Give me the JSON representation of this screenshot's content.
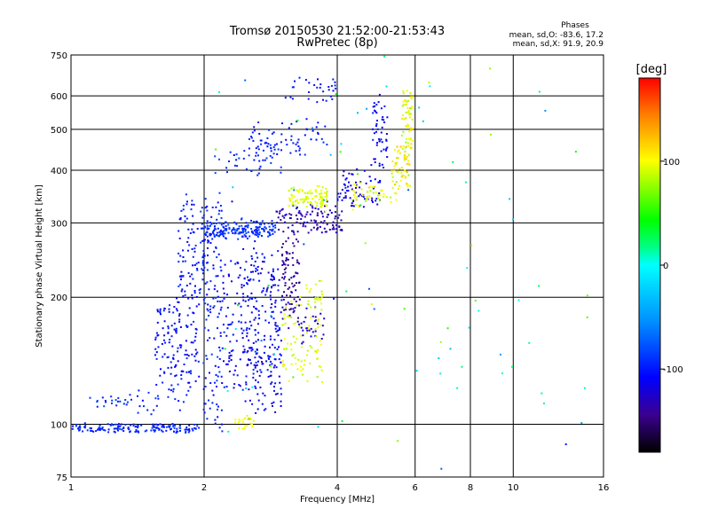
{
  "chart_data": {
    "type": "scatter",
    "title": "Tromsø 20150530 21:52:00-21:53:43",
    "subtitle": "RwPretec (8p)",
    "xlabel": "Frequency [MHz]",
    "ylabel": "Stationary phase Virtual Height [km]",
    "xscale": "log",
    "yscale": "log",
    "xlim": [
      1,
      16
    ],
    "ylim": [
      75,
      750
    ],
    "x_ticks": [
      1,
      2,
      4,
      6,
      8,
      10,
      16
    ],
    "x_tick_labels": [
      "1",
      "2",
      "4",
      "6",
      "8",
      "10",
      "16"
    ],
    "x_gridlines": [
      2,
      4,
      6,
      8,
      10
    ],
    "y_ticks": [
      75,
      100,
      200,
      300,
      400,
      500,
      600,
      750
    ],
    "y_tick_labels": [
      "75",
      "100",
      "200",
      "300",
      "400",
      "500",
      "600",
      "750"
    ],
    "y_gridlines": [
      100,
      200,
      300,
      400,
      500,
      600
    ],
    "grid": true,
    "phase_box": {
      "title": "Phases",
      "line_o": "mean, sd,O: -83.6, 17.2",
      "line_x": "mean, sd,X:  91.9, 20.9"
    },
    "colorbar": {
      "label": "[deg]",
      "range": [
        -180,
        180
      ],
      "ticks": [
        100,
        0,
        -100
      ],
      "tick_labels": [
        "100",
        "0",
        "-100"
      ]
    },
    "traces": [
      {
        "x0": 1.0,
        "x1": 1.95,
        "h0": 96,
        "h1": 100,
        "n": 150,
        "jitter": 0.008,
        "phase": -95,
        "psd": 8
      },
      {
        "x0": 1.1,
        "x1": 1.4,
        "h0": 110,
        "h1": 117,
        "n": 22,
        "jitter": 0.02,
        "phase": -90,
        "psd": 10
      },
      {
        "x0": 1.4,
        "x1": 1.85,
        "h0": 108,
        "h1": 125,
        "n": 30,
        "jitter": 0.04,
        "phase": -95,
        "psd": 10
      },
      {
        "x0": 1.55,
        "x1": 1.95,
        "h0": 130,
        "h1": 200,
        "n": 130,
        "jitter": 0.06,
        "phase": -105,
        "psd": 15
      },
      {
        "x0": 1.75,
        "x1": 2.05,
        "h0": 200,
        "h1": 340,
        "n": 110,
        "jitter": 0.05,
        "phase": -100,
        "psd": 15
      },
      {
        "x0": 1.98,
        "x1": 2.2,
        "h0": 100,
        "h1": 340,
        "n": 120,
        "jitter": 0.06,
        "phase": -100,
        "psd": 18
      },
      {
        "x0": 2.0,
        "x1": 2.9,
        "h0": 280,
        "h1": 300,
        "n": 180,
        "jitter": 0.025,
        "phase": -90,
        "psd": 12
      },
      {
        "x0": 2.2,
        "x1": 2.9,
        "h0": 110,
        "h1": 250,
        "n": 200,
        "jitter": 0.07,
        "phase": -110,
        "psd": 18
      },
      {
        "x0": 2.45,
        "x1": 2.65,
        "h0": 135,
        "h1": 300,
        "n": 70,
        "jitter": 0.06,
        "phase": -105,
        "psd": 15
      },
      {
        "x0": 2.8,
        "x1": 3.0,
        "h0": 110,
        "h1": 250,
        "n": 60,
        "jitter": 0.06,
        "phase": -110,
        "psd": 15
      },
      {
        "x0": 2.9,
        "x1": 4.1,
        "h0": 285,
        "h1": 330,
        "n": 110,
        "jitter": 0.02,
        "phase": -130,
        "psd": 12
      },
      {
        "x0": 3.0,
        "x1": 3.3,
        "h0": 175,
        "h1": 280,
        "n": 90,
        "jitter": 0.06,
        "phase": -140,
        "psd": 12
      },
      {
        "x0": 3.3,
        "x1": 3.75,
        "h0": 160,
        "h1": 190,
        "n": 30,
        "jitter": 0.04,
        "phase": -120,
        "psd": 12
      },
      {
        "x0": 3.0,
        "x1": 3.7,
        "h0": 130,
        "h1": 190,
        "n": 80,
        "jitter": 0.06,
        "phase": 95,
        "psd": 15
      },
      {
        "x0": 3.1,
        "x1": 3.8,
        "h0": 330,
        "h1": 360,
        "n": 100,
        "jitter": 0.025,
        "phase": 95,
        "psd": 12
      },
      {
        "x0": 3.4,
        "x1": 3.7,
        "h0": 190,
        "h1": 220,
        "n": 25,
        "jitter": 0.04,
        "phase": 90,
        "psd": 12
      },
      {
        "x0": 2.35,
        "x1": 2.6,
        "h0": 98,
        "h1": 104,
        "n": 22,
        "jitter": 0.01,
        "phase": 100,
        "psd": 10
      },
      {
        "x0": 2.5,
        "x1": 3.8,
        "h0": 440,
        "h1": 520,
        "n": 70,
        "jitter": 0.03,
        "phase": -100,
        "psd": 12
      },
      {
        "x0": 2.1,
        "x1": 3.0,
        "h0": 390,
        "h1": 450,
        "n": 40,
        "jitter": 0.03,
        "phase": -95,
        "psd": 12
      },
      {
        "x0": 3.0,
        "x1": 4.0,
        "h0": 580,
        "h1": 660,
        "n": 30,
        "jitter": 0.02,
        "phase": -100,
        "psd": 10
      },
      {
        "x0": 4.0,
        "x1": 5.0,
        "h0": 330,
        "h1": 400,
        "n": 70,
        "jitter": 0.03,
        "phase": -115,
        "psd": 12
      },
      {
        "x0": 4.8,
        "x1": 5.2,
        "h0": 400,
        "h1": 600,
        "n": 50,
        "jitter": 0.04,
        "phase": -110,
        "psd": 12
      },
      {
        "x0": 4.3,
        "x1": 5.5,
        "h0": 330,
        "h1": 370,
        "n": 50,
        "jitter": 0.03,
        "phase": 100,
        "psd": 20
      },
      {
        "x0": 5.3,
        "x1": 5.9,
        "h0": 370,
        "h1": 460,
        "n": 60,
        "jitter": 0.03,
        "phase": 100,
        "psd": 25
      },
      {
        "x0": 5.6,
        "x1": 5.95,
        "h0": 450,
        "h1": 620,
        "n": 60,
        "jitter": 0.02,
        "phase": 95,
        "psd": 18
      },
      {
        "x0": 2.0,
        "x1": 15.0,
        "h0": 80,
        "h1": 700,
        "n": 90,
        "jitter": 0.3,
        "phase": 0,
        "psd": 100
      }
    ]
  }
}
